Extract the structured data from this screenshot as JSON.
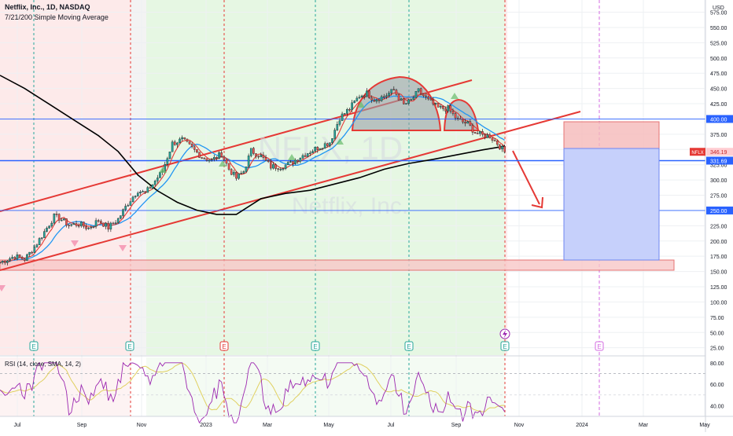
{
  "header": {
    "symbol_title": "Netflix, Inc., 1D, NASDAQ",
    "indicator_title": "7/21/200 Simple Moving Average",
    "currency": "USD",
    "watermark_symbol": "NFLX, 1D",
    "watermark_name": "Netflix, Inc."
  },
  "rsi": {
    "label": "RSI (14, close, SMA, 14, 2)",
    "ticks": [
      "80.00",
      "60.00",
      "40.00"
    ]
  },
  "colors": {
    "red_zone": "#fdeaea",
    "green_zone": "#e6f7e3",
    "channel": "#e53935",
    "ma_short": "#e53935",
    "ma_medium": "#2196f3",
    "ma_long": "#000000",
    "candle_up": "#26a69a",
    "candle_down": "#ef5350",
    "level_line": "#2962ff",
    "rsi_line": "#9c27b0",
    "rsi_ma": "#e0d060"
  },
  "chart_data": {
    "type": "candlestick",
    "x_ticks": [
      "Jul",
      "Sep",
      "Nov",
      "2023",
      "Mar",
      "May",
      "Jul",
      "Sep",
      "Nov",
      "2024",
      "Mar",
      "May"
    ],
    "y_ticks": [
      "575.00",
      "550.00",
      "525.00",
      "500.00",
      "475.00",
      "450.00",
      "425.00",
      "400.00",
      "375.00",
      "350.00",
      "325.00",
      "300.00",
      "275.00",
      "250.00",
      "225.00",
      "200.00",
      "175.00",
      "150.00",
      "125.00",
      "100.00",
      "75.00",
      "50.00",
      "25.00"
    ],
    "ylim": [
      13,
      595
    ],
    "price_labels": [
      {
        "text": "400.00",
        "value": 400
      },
      {
        "text": "NFLX",
        "value": 346.19,
        "type": "symbol"
      },
      {
        "text": "346.19",
        "value": 346.19,
        "type": "last"
      },
      {
        "text": "331.69",
        "value": 331.69
      },
      {
        "text": "250.00",
        "value": 250
      }
    ],
    "horizontal_levels": [
      400,
      331.69,
      250
    ],
    "earnings_markers": [
      "E",
      "E",
      "E",
      "E",
      "E",
      "E",
      "E"
    ],
    "path": [
      [
        0,
        165
      ],
      [
        6,
        175
      ],
      [
        10,
        170
      ],
      [
        14,
        190
      ],
      [
        18,
        215
      ],
      [
        22,
        240
      ],
      [
        24,
        238
      ],
      [
        28,
        226
      ],
      [
        32,
        228
      ],
      [
        36,
        221
      ],
      [
        40,
        234
      ],
      [
        44,
        222
      ],
      [
        48,
        236
      ],
      [
        52,
        262
      ],
      [
        56,
        283
      ],
      [
        59,
        278
      ],
      [
        62,
        293
      ],
      [
        66,
        315
      ],
      [
        70,
        360
      ],
      [
        74,
        366
      ],
      [
        78,
        352
      ],
      [
        82,
        338
      ],
      [
        86,
        332
      ],
      [
        90,
        343
      ],
      [
        93,
        318
      ],
      [
        96,
        303
      ],
      [
        99,
        314
      ],
      [
        102,
        348
      ],
      [
        106,
        339
      ],
      [
        110,
        322
      ],
      [
        114,
        322
      ],
      [
        118,
        327
      ],
      [
        122,
        338
      ],
      [
        126,
        347
      ],
      [
        130,
        355
      ],
      [
        134,
        362
      ],
      [
        138,
        402
      ],
      [
        142,
        417
      ],
      [
        146,
        438
      ],
      [
        149,
        442
      ],
      [
        152,
        432
      ],
      [
        156,
        437
      ],
      [
        160,
        447
      ],
      [
        164,
        423
      ],
      [
        167,
        430
      ],
      [
        170,
        446
      ],
      [
        174,
        430
      ],
      [
        178,
        418
      ],
      [
        182,
        417
      ],
      [
        186,
        398
      ],
      [
        190,
        392
      ],
      [
        193,
        378
      ],
      [
        196,
        373
      ],
      [
        199,
        372
      ],
      [
        202,
        360
      ],
      [
        205,
        346
      ]
    ]
  }
}
